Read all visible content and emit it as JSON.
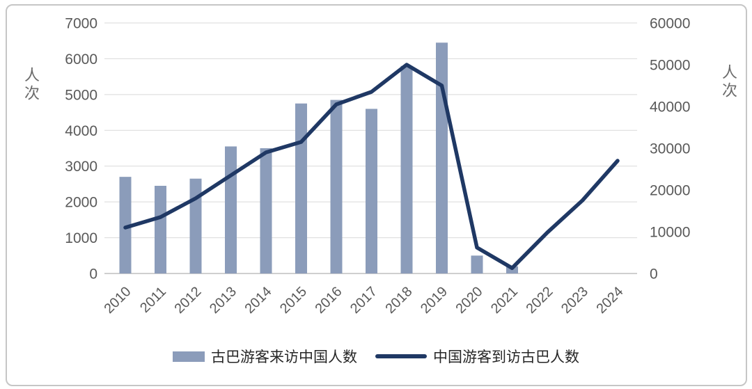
{
  "chart_data": {
    "type": "combo-bar-line",
    "title": "",
    "categories": [
      "2010",
      "2011",
      "2012",
      "2013",
      "2014",
      "2015",
      "2016",
      "2017",
      "2018",
      "2019",
      "2020",
      "2021",
      "2022",
      "2023",
      "2024"
    ],
    "series": [
      {
        "name": "古巴游客来访中国人数",
        "type": "bar",
        "axis": "left",
        "color": "#8B9CBA",
        "values": [
          2700,
          2450,
          2650,
          3550,
          3500,
          4750,
          4850,
          4600,
          5800,
          6450,
          500,
          200,
          null,
          null,
          null
        ]
      },
      {
        "name": "中国游客到访古巴人数",
        "type": "line",
        "axis": "right",
        "color": "#1F3864",
        "values": [
          11000,
          13500,
          18000,
          23500,
          29000,
          31500,
          40500,
          43500,
          50000,
          45000,
          6200,
          1300,
          9800,
          17500,
          27000
        ]
      }
    ],
    "left_axis": {
      "label": "人次",
      "min": 0,
      "max": 7000,
      "step": 1000,
      "tick_labels": [
        "0",
        "1000",
        "2000",
        "3000",
        "4000",
        "5000",
        "6000",
        "7000"
      ]
    },
    "right_axis": {
      "label": "人次",
      "min": 0,
      "max": 60000,
      "step": 10000,
      "tick_labels": [
        "0",
        "10000",
        "20000",
        "30000",
        "40000",
        "50000",
        "60000"
      ]
    },
    "grid": true,
    "legend_position": "bottom",
    "colors": {
      "gridline": "#D9D9D9",
      "axis_line": "#BFBFBF",
      "tick_text": "#595959",
      "legend_text": "#262626",
      "frame_border": "#C6C6C6",
      "background": "#FFFFFF"
    }
  }
}
